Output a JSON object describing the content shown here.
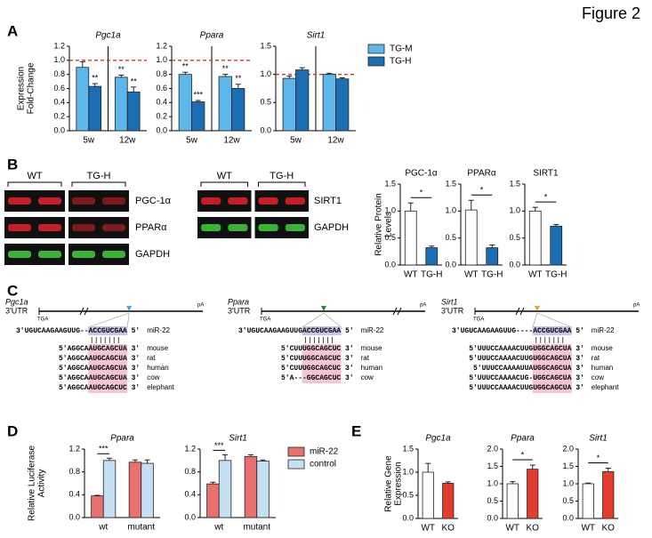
{
  "figure": {
    "title": "Figure 2",
    "panel_labels": [
      "A",
      "B",
      "C",
      "D",
      "E"
    ]
  },
  "chart_data": [
    {
      "type": "bar",
      "title": "Pgc1a",
      "ylabel": [
        "Expression",
        "Fold-Change"
      ],
      "categories": [
        "5w",
        "12w"
      ],
      "refline": 1,
      "ylim": [
        0,
        1.2
      ],
      "yticks": [
        {
          "value": 0,
          "label": "0.0"
        },
        0.2,
        0.4,
        0.6,
        0.8,
        {
          "value": 1,
          "label": "1.0"
        },
        1.2
      ],
      "series": [
        {
          "color": "#5db7e8",
          "values": [
            0.9,
            0.76
          ],
          "errors": [
            0.08,
            0.03
          ],
          "significance": [
            null,
            "**"
          ]
        },
        {
          "color": "#1c6eb4",
          "values": [
            0.63,
            0.55
          ],
          "errors": [
            0.04,
            0.07
          ],
          "significance": [
            "**",
            "**"
          ]
        }
      ]
    },
    {
      "type": "bar",
      "title": "Ppara",
      "categories": [
        "5w",
        "12w"
      ],
      "refline": 1,
      "ylim": [
        0,
        1.2
      ],
      "yticks": [
        {
          "value": 0,
          "label": "0.0"
        },
        0.2,
        0.4,
        0.6,
        0.8,
        {
          "value": 1,
          "label": "1.0"
        },
        1.2
      ],
      "series": [
        {
          "color": "#5db7e8",
          "values": [
            0.8,
            0.77
          ],
          "errors": [
            0.03,
            0.03
          ],
          "significance": [
            "**",
            "**"
          ]
        },
        {
          "color": "#1c6eb4",
          "values": [
            0.41,
            0.6
          ],
          "errors": [
            0.02,
            0.06
          ],
          "significance": [
            "***",
            "**"
          ]
        }
      ]
    },
    {
      "type": "bar",
      "title": "Sirt1",
      "categories": [
        "5w",
        "12w"
      ],
      "refline": 1,
      "legend": "right",
      "ylim": [
        0,
        1.5
      ],
      "yticks": [
        {
          "value": 0,
          "label": "0.0"
        },
        0.5,
        {
          "value": 1,
          "label": "1.0"
        },
        1.5
      ],
      "series": [
        {
          "name": "TG-M",
          "color": "#5db7e8",
          "values": [
            0.93,
            1.0
          ],
          "errors": [
            0.04,
            0.02
          ]
        },
        {
          "name": "TG-H",
          "color": "#1c6eb4",
          "values": [
            1.08,
            0.92
          ],
          "errors": [
            0.04,
            0.02
          ]
        }
      ]
    },
    {
      "type": "bar",
      "title": "PGC-1α",
      "ylabel": [
        "Relative Protein",
        "Levels"
      ],
      "categories": [
        "WT",
        "TG-H"
      ],
      "values": [
        1.0,
        0.32
      ],
      "errors": [
        0.15,
        0.03
      ],
      "colors": [
        "#ffffff",
        "#1c6eb4"
      ],
      "significance": "*",
      "ylim": [
        0,
        1.5
      ],
      "yticks": [
        {
          "value": 0,
          "label": "0.0"
        },
        0.5,
        {
          "value": 1,
          "label": "1.0"
        },
        1.5
      ]
    },
    {
      "type": "bar",
      "title": "PPARα",
      "categories": [
        "WT",
        "TG-H"
      ],
      "values": [
        1.02,
        0.32
      ],
      "errors": [
        0.18,
        0.05
      ],
      "colors": [
        "#ffffff",
        "#1c6eb4"
      ],
      "significance": "*",
      "ylim": [
        0,
        1.5
      ],
      "yticks": [
        {
          "value": 0,
          "label": "0.0"
        },
        0.5,
        {
          "value": 1,
          "label": "1.0"
        },
        1.5
      ]
    },
    {
      "type": "bar",
      "title": "SIRT1",
      "categories": [
        "WT",
        "TG-H"
      ],
      "values": [
        1.0,
        0.72
      ],
      "errors": [
        0.07,
        0.03
      ],
      "colors": [
        "#ffffff",
        "#1c6eb4"
      ],
      "significance": "*",
      "ylim": [
        0,
        1.5
      ],
      "yticks": [
        {
          "value": 0,
          "label": "0.0"
        },
        0.5,
        {
          "value": 1,
          "label": "1.0"
        },
        1.5
      ]
    },
    {
      "type": "bar",
      "title": "Ppara",
      "ylabel": [
        "Relative Luciferase",
        "Activity"
      ],
      "categories": [
        "wt",
        "mutant"
      ],
      "significance": [
        "***",
        null
      ],
      "ylim": [
        0,
        1.2
      ],
      "yticks": [
        {
          "value": 0,
          "label": "0.0"
        },
        0.4,
        0.8,
        1.2
      ],
      "series": [
        {
          "color": "#e8706f",
          "values": [
            0.38,
            0.97
          ],
          "errors": [
            0.01,
            0.04
          ]
        },
        {
          "color": "#c5dff3",
          "values": [
            1.0,
            0.95
          ],
          "errors": [
            0.04,
            0.06
          ]
        }
      ]
    },
    {
      "type": "bar",
      "title": "Sirt1",
      "categories": [
        "wt",
        "mutant"
      ],
      "legend": "right",
      "significance": [
        "***",
        null
      ],
      "ylim": [
        0,
        1.2
      ],
      "yticks": [
        {
          "value": 0,
          "label": "0.0"
        },
        0.4,
        0.8,
        1.2
      ],
      "series": [
        {
          "name": "miR-22",
          "color": "#e8706f",
          "values": [
            0.59,
            1.07
          ],
          "errors": [
            0.03,
            0.03
          ]
        },
        {
          "name": "control",
          "color": "#c5dff3",
          "values": [
            1.0,
            0.99
          ],
          "errors": [
            0.1,
            0.02
          ]
        }
      ]
    },
    {
      "type": "bar",
      "title": "Pgc1a",
      "ylabel": [
        "Relative Gene",
        "Expression"
      ],
      "categories": [
        "WT",
        "KO"
      ],
      "values": [
        1.0,
        0.76
      ],
      "errors": [
        0.19,
        0.03
      ],
      "colors": [
        "#ffffff",
        "#e33b2e"
      ],
      "ylim": [
        0,
        1.5
      ],
      "yticks": [
        {
          "value": 0,
          "label": "0.0"
        },
        0.5,
        {
          "value": 1,
          "label": "1.0"
        },
        1.5
      ]
    },
    {
      "type": "bar",
      "title": "Ppara",
      "categories": [
        "WT",
        "KO"
      ],
      "values": [
        1.0,
        1.42
      ],
      "errors": [
        0.06,
        0.12
      ],
      "colors": [
        "#ffffff",
        "#e33b2e"
      ],
      "significance": "*",
      "ylim": [
        0,
        2
      ],
      "yticks": [
        {
          "value": 0,
          "label": "0.0"
        },
        0.5,
        {
          "value": 1,
          "label": "1.0"
        },
        1.5,
        {
          "value": 2,
          "label": "2.0"
        }
      ]
    },
    {
      "type": "bar",
      "title": "Sirt1",
      "categories": [
        "WT",
        "KO"
      ],
      "values": [
        1.0,
        1.35
      ],
      "errors": [
        0.02,
        0.1
      ],
      "colors": [
        "#ffffff",
        "#e33b2e"
      ],
      "significance": "*",
      "ylim": [
        0,
        2
      ],
      "yticks": [
        {
          "value": 0,
          "label": "0.0"
        },
        0.5,
        {
          "value": 1,
          "label": "1.0"
        },
        1.5,
        {
          "value": 2,
          "label": "2.0"
        }
      ]
    }
  ],
  "blots": [
    {
      "groups": [
        "WT",
        "TG-H"
      ],
      "proteins": [
        "PGC-1α",
        "PPARα",
        "GAPDH"
      ]
    },
    {
      "groups": [
        "WT",
        "TG-H"
      ],
      "proteins": [
        "SIRT1",
        "GAPDH"
      ]
    }
  ],
  "sequences": [
    {
      "gene": "Pgc1a",
      "utr": "3'UTR",
      "stop": "TGA",
      "polya": "pA",
      "mirna": {
        "seq": "3'UGUCAAGAAGUUG--ACCGUCGAA 5'",
        "name": "miR-22"
      },
      "targets": [
        {
          "seq": "5'AGGCAAUGCAGCUA 3'",
          "species": "mouse"
        },
        {
          "seq": "5'AGGCAAUGCAGCUA 3'",
          "species": "rat"
        },
        {
          "seq": "5'AGGCAAUGCAGCUA 3'",
          "species": "human"
        },
        {
          "seq": "5'AGGCAAUGCAGCUA 3'",
          "species": "cow"
        },
        {
          "seq": "5'AGGCAAUGCAGCUC 3'",
          "species": "elephant"
        }
      ]
    },
    {
      "gene": "Ppara",
      "utr": "3'UTR",
      "stop": "TGA",
      "polya": "pA",
      "mirna": {
        "seq": "3'UGUCAAGAAGUUGACCGUCGAA 5'",
        "name": "miR-22"
      },
      "targets": [
        {
          "seq": "5'CUUUGGCAGCUC 3'",
          "species": "mouse"
        },
        {
          "seq": "5'CUUUGGCAGCUC 3'",
          "species": "rat"
        },
        {
          "seq": "5'CUUUGGCAGCUC 3'",
          "species": "human"
        },
        {
          "seq": "5'A---GGCAGCUC 3'",
          "species": "cow"
        }
      ]
    },
    {
      "gene": "Sirt1",
      "utr": "3'UTR",
      "stop": "TGA",
      "polya": "pA",
      "mirna": {
        "seq": "3'UGUCAAGAAGUUG----ACCGUCGAA 5'",
        "name": "miR-22"
      },
      "targets": [
        {
          "seq": "5'UUUCCAAAACUUGUGGCAGCUA 3'",
          "species": "mouse"
        },
        {
          "seq": "5'UUUCCAAAACUUGUGGCAGCUA 3'",
          "species": "rat"
        },
        {
          "seq": "5'UUUCCAAAAUUAUGGCAGCUA 3'",
          "species": "human"
        },
        {
          "seq": "5'UUUCCAAAACUG-UGGCAGCUA 3'",
          "species": "cow"
        },
        {
          "seq": "5'UUUCCAAAACUUGUGGCAGCUA 3'",
          "species": "elephant"
        }
      ]
    }
  ]
}
